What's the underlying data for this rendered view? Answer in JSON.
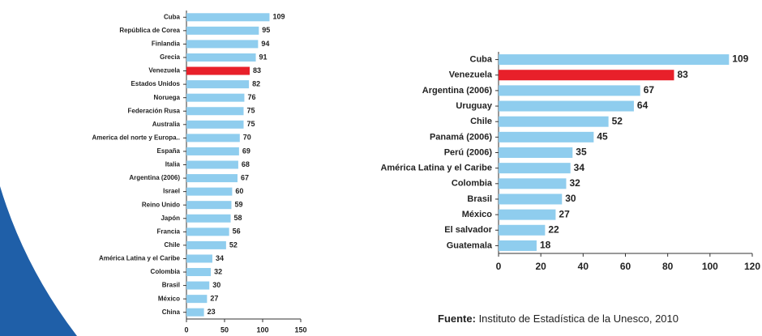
{
  "chart_data": [
    {
      "type": "barh",
      "categories": [
        "Cuba",
        "República de Corea",
        "Finlandia",
        "Grecia",
        "Venezuela",
        "Estados Unidos",
        "Noruega",
        "Federación Rusa",
        "Australia",
        "America del norte y Europa..",
        "España",
        "Italia",
        "Argentina (2006)",
        "Israel",
        "Reino Unido",
        "Japón",
        "Francia",
        "Chile",
        "América Latina y el Caribe",
        "Colombia",
        "Brasil",
        "México",
        "China"
      ],
      "values": [
        109,
        95,
        94,
        91,
        83,
        82,
        76,
        75,
        75,
        70,
        69,
        68,
        67,
        60,
        59,
        58,
        56,
        52,
        34,
        32,
        30,
        27,
        23
      ],
      "colors": [
        "#8fcdee",
        "#8fcdee",
        "#8fcdee",
        "#8fcdee",
        "#e8202a",
        "#8fcdee",
        "#8fcdee",
        "#8fcdee",
        "#8fcdee",
        "#8fcdee",
        "#8fcdee",
        "#8fcdee",
        "#8fcdee",
        "#8fcdee",
        "#8fcdee",
        "#8fcdee",
        "#8fcdee",
        "#8fcdee",
        "#8fcdee",
        "#8fcdee",
        "#8fcdee",
        "#8fcdee",
        "#8fcdee"
      ],
      "xlim": [
        0,
        150
      ],
      "xticks": [
        0,
        50,
        100,
        150
      ]
    },
    {
      "type": "barh",
      "categories": [
        "Cuba",
        "Venezuela",
        "Argentina (2006)",
        "Uruguay",
        "Chile",
        "Panamá (2006)",
        "Perú (2006)",
        "América Latina y el Caribe",
        "Colombia",
        "Brasil",
        "México",
        "El salvador",
        "Guatemala"
      ],
      "values": [
        109,
        83,
        67,
        64,
        52,
        45,
        35,
        34,
        32,
        30,
        27,
        22,
        18
      ],
      "colors": [
        "#8fcdee",
        "#e8202a",
        "#8fcdee",
        "#8fcdee",
        "#8fcdee",
        "#8fcdee",
        "#8fcdee",
        "#8fcdee",
        "#8fcdee",
        "#8fcdee",
        "#8fcdee",
        "#8fcdee",
        "#8fcdee"
      ],
      "xlim": [
        0,
        120
      ],
      "xticks": [
        0,
        20,
        40,
        60,
        80,
        100,
        120
      ]
    }
  ],
  "source": {
    "label": "Fuente:",
    "text": " Instituto de Estadística de la Unesco, 2010"
  }
}
